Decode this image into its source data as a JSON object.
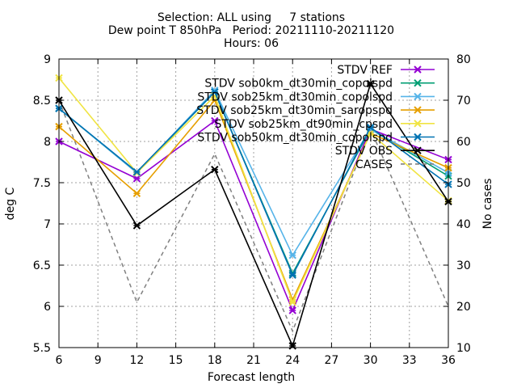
{
  "chart_data": {
    "type": "line",
    "title_lines": [
      "Selection: ALL using     7 stations",
      "Dew point T 850hPa   Period: 20211110-20211120",
      "Hours: 06"
    ],
    "xlabel": "Forecast length",
    "ylabel": "deg C",
    "y2label": "No cases",
    "x": [
      6,
      12,
      18,
      24,
      30,
      36
    ],
    "xticks": [
      6,
      9,
      12,
      15,
      18,
      21,
      24,
      27,
      30,
      33,
      36
    ],
    "xlim": [
      6,
      36
    ],
    "ylim": [
      5.5,
      9
    ],
    "yticks": [
      5.5,
      6,
      6.5,
      7,
      7.5,
      8,
      8.5,
      9
    ],
    "y2lim": [
      10,
      80
    ],
    "y2ticks": [
      10,
      20,
      30,
      40,
      50,
      60,
      70,
      80
    ],
    "grid": true,
    "legend_position": "top-right",
    "series": [
      {
        "name": "STDV REF",
        "color": "#9400d3",
        "marker": "x",
        "values": [
          8.0,
          7.55,
          8.25,
          5.95,
          8.15,
          7.78
        ]
      },
      {
        "name": "STDV sob0km_dt30min_copolspd",
        "color": "#009e73",
        "marker": "x",
        "values": [
          8.4,
          7.62,
          8.6,
          6.4,
          8.15,
          7.58
        ]
      },
      {
        "name": "STDV sob25km_dt30min_copolspd",
        "color": "#56b4e9",
        "marker": "x",
        "values": [
          8.4,
          7.62,
          8.62,
          6.62,
          8.15,
          7.62
        ]
      },
      {
        "name": "STDV sob25km_dt30min_saropspd",
        "color": "#e69f00",
        "marker": "x",
        "values": [
          8.18,
          7.37,
          8.5,
          6.08,
          8.1,
          7.68
        ]
      },
      {
        "name": "STDV sob25km_dt90min_cpspd",
        "color": "#f0e442",
        "marker": "x",
        "values": [
          8.77,
          7.62,
          8.55,
          6.05,
          8.1,
          7.28
        ]
      },
      {
        "name": "STDV sob50km_dt30min_copolspd",
        "color": "#0072b2",
        "marker": "x",
        "values": [
          8.4,
          7.63,
          8.6,
          6.38,
          8.17,
          7.48
        ]
      },
      {
        "name": "STDV OBS",
        "color": "#000000",
        "marker": "x",
        "values": [
          8.5,
          6.98,
          7.66,
          5.52,
          8.7,
          7.27
        ]
      },
      {
        "name": "CASES",
        "color": "#808080",
        "dashed": true,
        "axis": "y2",
        "values": [
          70,
          21,
          57,
          14,
          63,
          20
        ]
      }
    ]
  }
}
